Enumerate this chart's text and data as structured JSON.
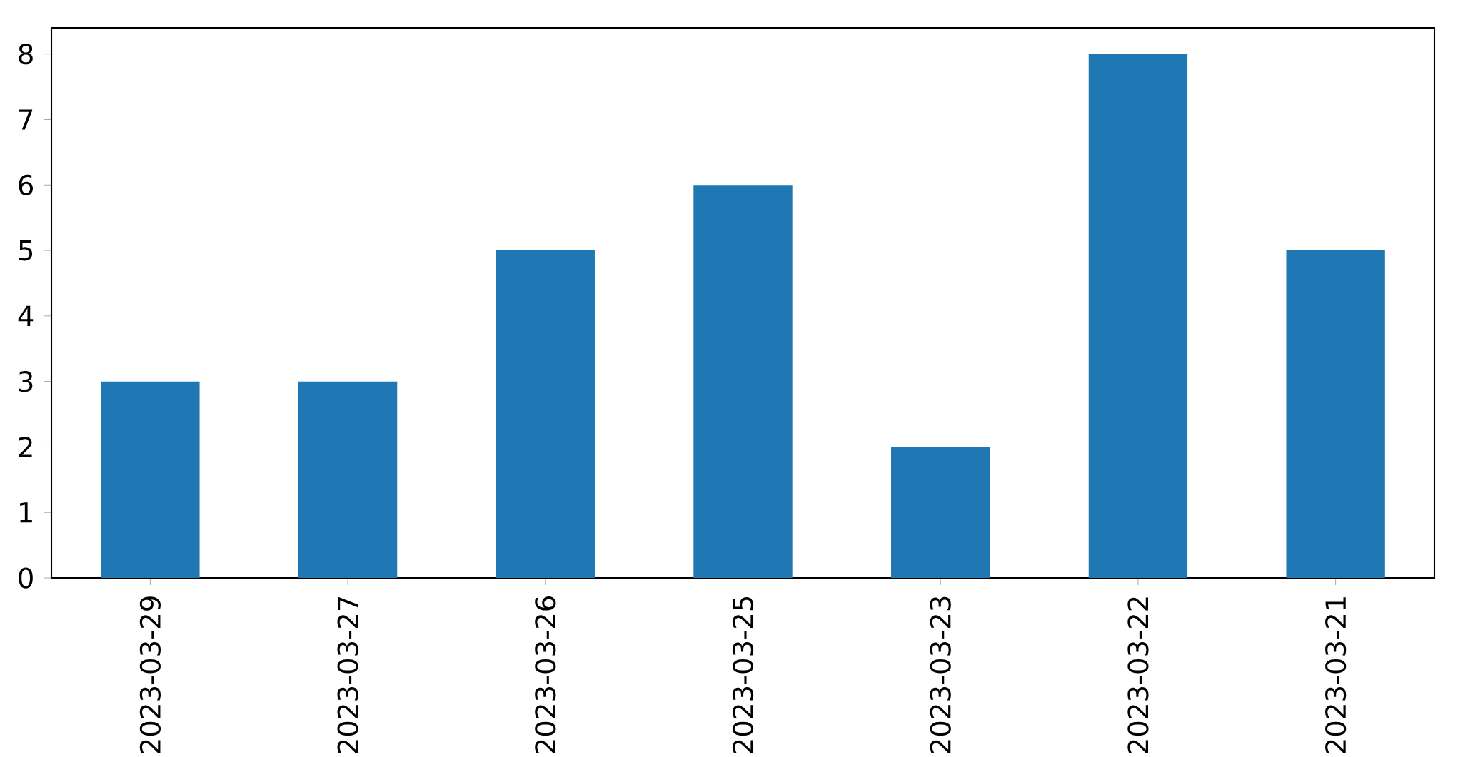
{
  "chart_data": {
    "type": "bar",
    "categories": [
      "2023-03-29",
      "2023-03-27",
      "2023-03-26",
      "2023-03-25",
      "2023-03-23",
      "2023-03-22",
      "2023-03-21"
    ],
    "values": [
      3,
      3,
      5,
      6,
      2,
      8,
      5
    ],
    "color": "#1f77b4",
    "ylim": [
      0,
      8.4
    ],
    "yticks": [
      0,
      1,
      2,
      3,
      4,
      5,
      6,
      7,
      8
    ]
  }
}
